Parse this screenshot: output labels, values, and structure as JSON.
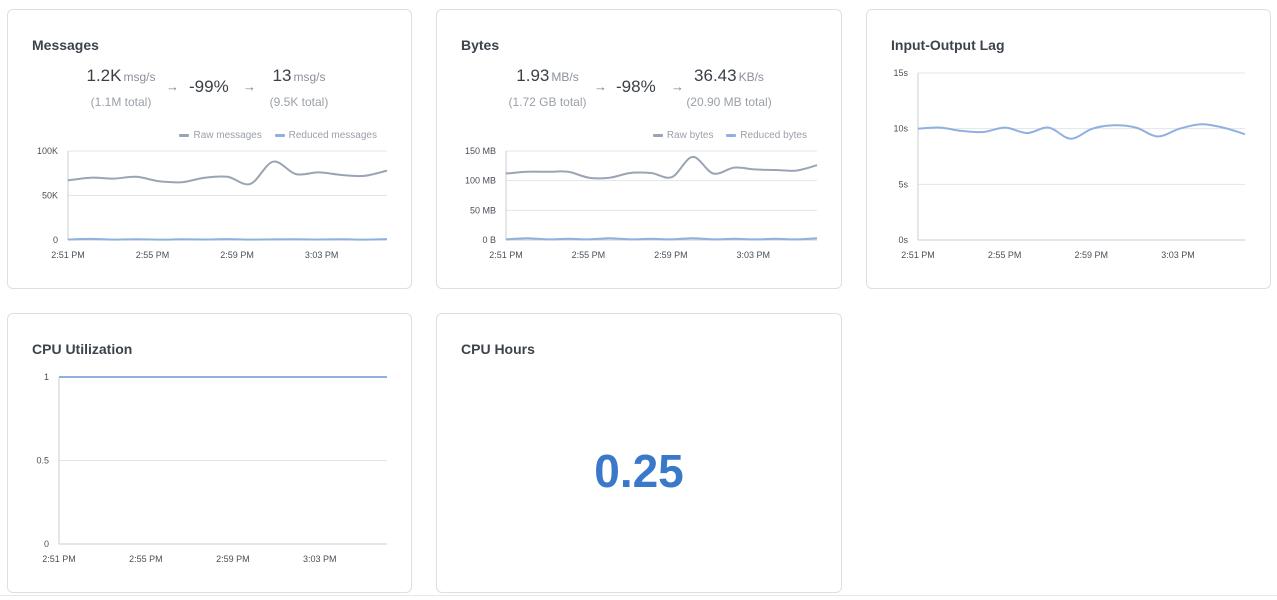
{
  "colors": {
    "raw": "#9ba4b4",
    "reduced": "#8fb1e0",
    "value": "#3a78c9"
  },
  "messages": {
    "title": "Messages",
    "raw": {
      "value": "1.2K",
      "unit": "msg/s",
      "total": "(1.1M total)"
    },
    "change": "-99%",
    "reduced": {
      "value": "13",
      "unit": "msg/s",
      "total": "(9.5K total)"
    },
    "legend": {
      "raw": "Raw messages",
      "reduced": "Reduced messages"
    }
  },
  "bytes": {
    "title": "Bytes",
    "raw": {
      "value": "1.93",
      "unit": "MB/s",
      "total": "(1.72 GB total)"
    },
    "change": "-98%",
    "reduced": {
      "value": "36.43",
      "unit": "KB/s",
      "total": "(20.90 MB total)"
    },
    "legend": {
      "raw": "Raw bytes",
      "reduced": "Reduced bytes"
    }
  },
  "lag": {
    "title": "Input-Output Lag"
  },
  "cpu_util": {
    "title": "CPU Utilization"
  },
  "cpu_hours": {
    "title": "CPU Hours",
    "value": "0.25"
  },
  "chart_data": [
    {
      "id": "messages",
      "type": "line",
      "x_ticks": [
        "2:51 PM",
        "2:55 PM",
        "2:59 PM",
        "3:03 PM"
      ],
      "x": [
        0,
        1,
        2,
        3,
        4,
        5,
        6,
        7,
        8,
        9,
        10,
        11,
        12,
        13,
        14
      ],
      "y_ticks": [
        "0",
        "50K",
        "100K"
      ],
      "ylim": [
        0,
        100000
      ],
      "grid": true,
      "legend": "top-right",
      "series": [
        {
          "name": "Raw messages",
          "color": "raw",
          "values": [
            67000,
            70000,
            69000,
            71000,
            66000,
            65000,
            70000,
            71000,
            63000,
            88000,
            74000,
            76000,
            73000,
            72000,
            78000
          ]
        },
        {
          "name": "Reduced messages",
          "color": "reduced",
          "values": [
            600,
            1200,
            500,
            900,
            400,
            800,
            600,
            1000,
            500,
            700,
            900,
            600,
            800,
            500,
            1000
          ]
        }
      ]
    },
    {
      "id": "bytes",
      "type": "line",
      "x_ticks": [
        "2:51 PM",
        "2:55 PM",
        "2:59 PM",
        "3:03 PM"
      ],
      "x": [
        0,
        1,
        2,
        3,
        4,
        5,
        6,
        7,
        8,
        9,
        10,
        11,
        12,
        13,
        14,
        15
      ],
      "y_ticks": [
        "0 B",
        "50 MB",
        "100 MB",
        "150 MB"
      ],
      "ylim": [
        0,
        150
      ],
      "grid": true,
      "legend": "top-right",
      "series": [
        {
          "name": "Raw bytes",
          "color": "raw",
          "values": [
            112,
            115,
            115,
            115,
            105,
            105,
            113,
            113,
            106,
            140,
            112,
            122,
            119,
            118,
            117,
            126
          ]
        },
        {
          "name": "Reduced bytes",
          "color": "reduced",
          "values": [
            1,
            3,
            1,
            2,
            1,
            3,
            1,
            2,
            1,
            3,
            1,
            2,
            1,
            2,
            1,
            3
          ]
        }
      ]
    },
    {
      "id": "lag",
      "type": "line",
      "x_ticks": [
        "2:51 PM",
        "2:55 PM",
        "2:59 PM",
        "3:03 PM"
      ],
      "x": [
        0,
        1,
        2,
        3,
        4,
        5,
        6,
        7,
        8,
        9,
        10,
        11,
        12,
        13,
        14,
        15
      ],
      "y_ticks": [
        "0s",
        "5s",
        "10s",
        "15s"
      ],
      "ylim": [
        0,
        15
      ],
      "grid": true,
      "series": [
        {
          "color": "reduced",
          "values": [
            10,
            10.1,
            9.8,
            9.7,
            10.1,
            9.6,
            10.1,
            9.1,
            10,
            10.3,
            10.1,
            9.3,
            10,
            10.4,
            10.1,
            9.5
          ]
        }
      ]
    },
    {
      "id": "cpu_util",
      "type": "line",
      "x_ticks": [
        "2:51 PM",
        "2:55 PM",
        "2:59 PM",
        "3:03 PM"
      ],
      "x": [
        0,
        1
      ],
      "y_ticks": [
        "0",
        "0.5",
        "1"
      ],
      "ylim": [
        0,
        1
      ],
      "grid": true,
      "series": [
        {
          "color": "reduced",
          "values": [
            1,
            1
          ]
        }
      ]
    }
  ]
}
